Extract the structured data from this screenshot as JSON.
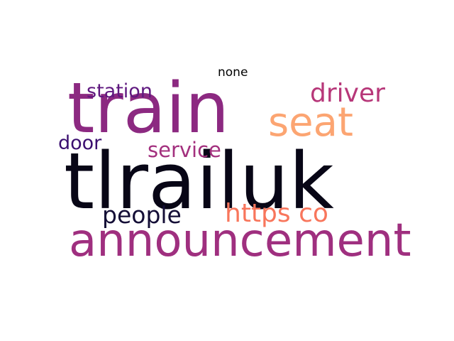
{
  "words": {
    "none": {
      "text": "none",
      "color": "#000000"
    },
    "train": {
      "text": "train",
      "color": "#8c2981"
    },
    "station": {
      "text": "station",
      "color": "#5f187f"
    },
    "driver": {
      "text": "driver",
      "color": "#b73779"
    },
    "seat": {
      "text": "seat",
      "color": "#fca572"
    },
    "door": {
      "text": "door",
      "color": "#3b0f70"
    },
    "service": {
      "text": "service",
      "color": "#a3307e"
    },
    "tlrailuk": {
      "text": "tlrailuk",
      "color": "#080616"
    },
    "people": {
      "text": "people",
      "color": "#140e36"
    },
    "https_co": {
      "text": "https co",
      "color": "#f8765c"
    },
    "announcement": {
      "text": "announcement",
      "color": "#9f2f7f"
    }
  }
}
